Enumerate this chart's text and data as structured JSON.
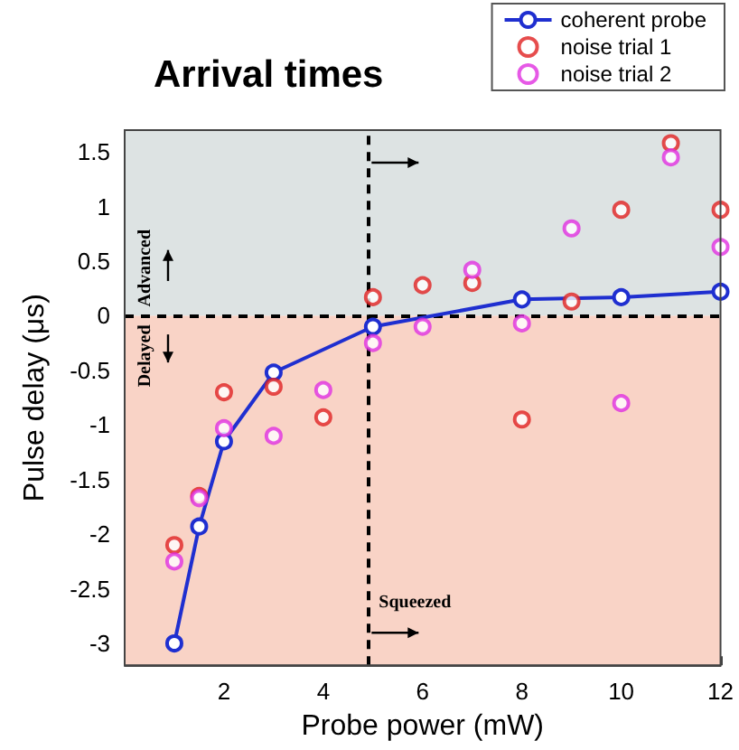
{
  "chart_data": {
    "type": "scatter",
    "title": "Arrival times",
    "xlabel": "Probe power (mW)",
    "ylabel": "Pulse delay (μs)",
    "xlim": [
      0,
      12
    ],
    "xticks": [
      2,
      4,
      6,
      8,
      10,
      12
    ],
    "ylim": [
      -3.2,
      1.7
    ],
    "yticks": [
      -3,
      -2.5,
      -2,
      -1.5,
      -1,
      -0.5,
      0,
      0.5,
      1,
      1.5
    ],
    "grid": false,
    "legend": "top right",
    "marker": "circle",
    "series": [
      {
        "name": "coherent probe",
        "type": "line",
        "color": "#1f2fd0",
        "x": [
          1,
          1.5,
          2,
          3,
          5,
          8,
          10,
          12
        ],
        "values": [
          -3.0,
          -1.93,
          -1.15,
          -0.52,
          -0.1,
          0.15,
          0.17,
          0.22
        ]
      },
      {
        "name": "noise trial 1",
        "color": "#e02020",
        "x": [
          1,
          1.5,
          2,
          3,
          4,
          5,
          6,
          7,
          8,
          9,
          10,
          11,
          12
        ],
        "values": [
          -2.1,
          -1.65,
          -0.7,
          -0.65,
          -0.93,
          0.17,
          0.28,
          0.3,
          -0.95,
          0.13,
          0.97,
          1.58,
          0.97
        ]
      },
      {
        "name": "noise trial 2",
        "color": "#e030e0",
        "x": [
          1,
          1.5,
          2,
          3,
          4,
          5,
          6,
          7,
          8,
          9,
          10,
          11,
          12
        ],
        "values": [
          -2.25,
          -1.67,
          -1.03,
          -1.1,
          -0.68,
          -0.25,
          -0.1,
          0.42,
          -0.07,
          0.8,
          -0.8,
          1.45,
          0.63
        ]
      }
    ],
    "bands": [
      {
        "axis": "y",
        "from": 0,
        "to": 1.7,
        "label": "Advanced",
        "color": "#dde3e3"
      },
      {
        "axis": "y",
        "from": -3.2,
        "to": 0,
        "label": "Delayed",
        "color": "#f9d3c6"
      }
    ],
    "ref_lines": [
      {
        "axis": "y",
        "value": 0,
        "line_style": "dashed",
        "color": "#000000"
      },
      {
        "axis": "x",
        "value": 4.9,
        "label": "Squeezed",
        "line_style": "dashed",
        "color": "#000000"
      }
    ]
  }
}
